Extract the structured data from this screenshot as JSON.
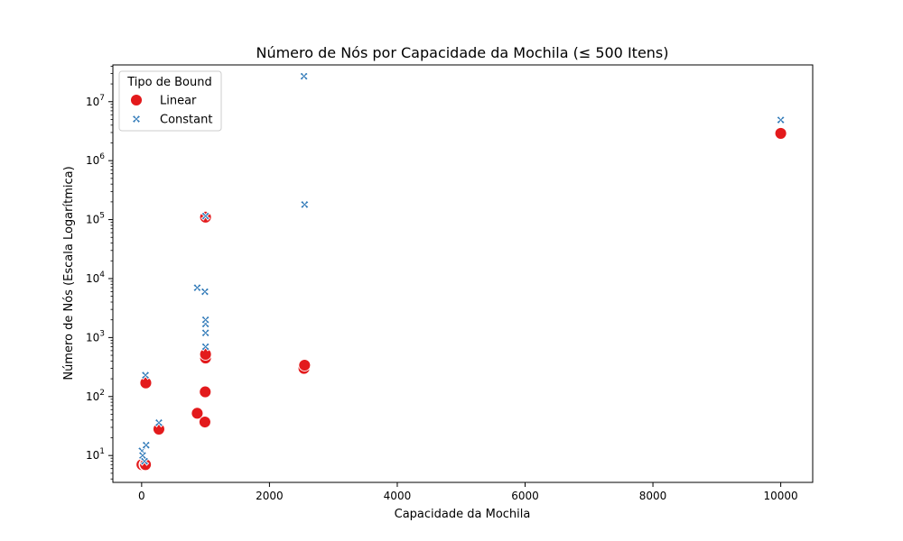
{
  "chart_data": {
    "type": "scatter",
    "title": "Número de Nós por Capacidade da Mochila (≤ 500 Itens)",
    "xlabel": "Capacidade da Mochila",
    "ylabel": "Número de Nós (Escala Logarítmica)",
    "xlim": [
      -450,
      10500
    ],
    "ylim": [
      3.5,
      42000000
    ],
    "yscale": "log",
    "xticks": [
      0,
      2000,
      4000,
      6000,
      8000,
      10000
    ],
    "xtick_labels": [
      "0",
      "2000",
      "4000",
      "6000",
      "8000",
      "10000"
    ],
    "yticks": [
      10,
      100,
      1000,
      10000,
      100000,
      1000000,
      10000000
    ],
    "ytick_labels": [
      {
        "base": "10",
        "exp": "1"
      },
      {
        "base": "10",
        "exp": "2"
      },
      {
        "base": "10",
        "exp": "3"
      },
      {
        "base": "10",
        "exp": "4"
      },
      {
        "base": "10",
        "exp": "5"
      },
      {
        "base": "10",
        "exp": "6"
      },
      {
        "base": "10",
        "exp": "7"
      }
    ],
    "grid": false,
    "legend": {
      "title": "Tipo de Bound",
      "placement": "top-left"
    },
    "series": [
      {
        "name": "Linear",
        "marker": "circle",
        "color": "#e31a1c",
        "points": [
          [
            5,
            7
          ],
          [
            50,
            7
          ],
          [
            60,
            7
          ],
          [
            65,
            170
          ],
          [
            270,
            28
          ],
          [
            870,
            52
          ],
          [
            990,
            37
          ],
          [
            995,
            120
          ],
          [
            1000,
            450
          ],
          [
            1000,
            520
          ],
          [
            1000,
            110000
          ],
          [
            2540,
            300
          ],
          [
            2550,
            340
          ],
          [
            10000,
            2900000
          ]
        ]
      },
      {
        "name": "Constant",
        "marker": "x",
        "color": "#2f79b8",
        "points": [
          [
            5,
            12
          ],
          [
            15,
            10
          ],
          [
            45,
            8
          ],
          [
            60,
            230
          ],
          [
            70,
            15
          ],
          [
            270,
            36
          ],
          [
            870,
            7000
          ],
          [
            990,
            6000
          ],
          [
            1000,
            700
          ],
          [
            1000,
            1200
          ],
          [
            1000,
            1700
          ],
          [
            1000,
            2000
          ],
          [
            1000,
            115000
          ],
          [
            2540,
            27000000
          ],
          [
            2550,
            180000
          ],
          [
            10000,
            4900000
          ]
        ]
      }
    ]
  }
}
